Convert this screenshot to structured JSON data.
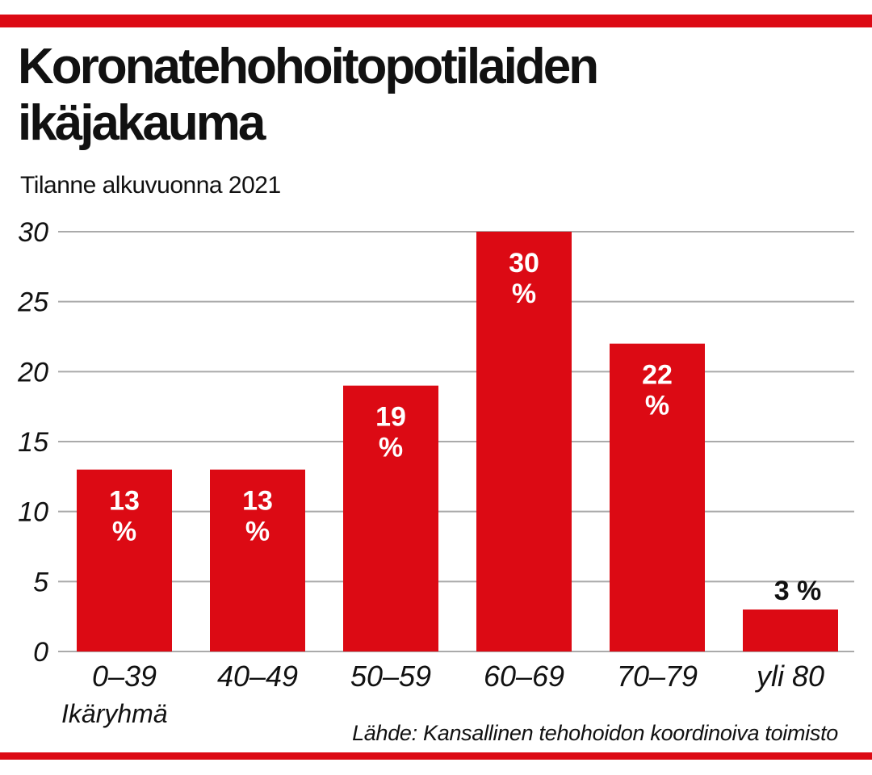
{
  "colors": {
    "accent": "#dc0a14",
    "grid": "#aaaaaa",
    "text": "#111111",
    "label_inside": "#ffffff",
    "label_outside": "#111111"
  },
  "chart_data": {
    "type": "bar",
    "title_lines": [
      "Koronatehohoitopotilaiden",
      "ikäjakauma"
    ],
    "subtitle": "Tilanne alkuvuonna 2021",
    "categories": [
      "0–39",
      "40–49",
      "50–59",
      "60–69",
      "70–79",
      "yli 80"
    ],
    "values": [
      13,
      13,
      19,
      30,
      22,
      3
    ],
    "value_labels": [
      "13 %",
      "13 %",
      "19 %",
      "30 %",
      "22 %",
      "3 %"
    ],
    "xlabel": "Ikäryhmä",
    "ylabel": "",
    "ylim": [
      0,
      30
    ],
    "yticks": [
      0,
      5,
      10,
      15,
      20,
      25,
      30
    ],
    "grid": true,
    "source": "Lähde: Kansallinen tehohoidon koordinoiva toimisto"
  }
}
